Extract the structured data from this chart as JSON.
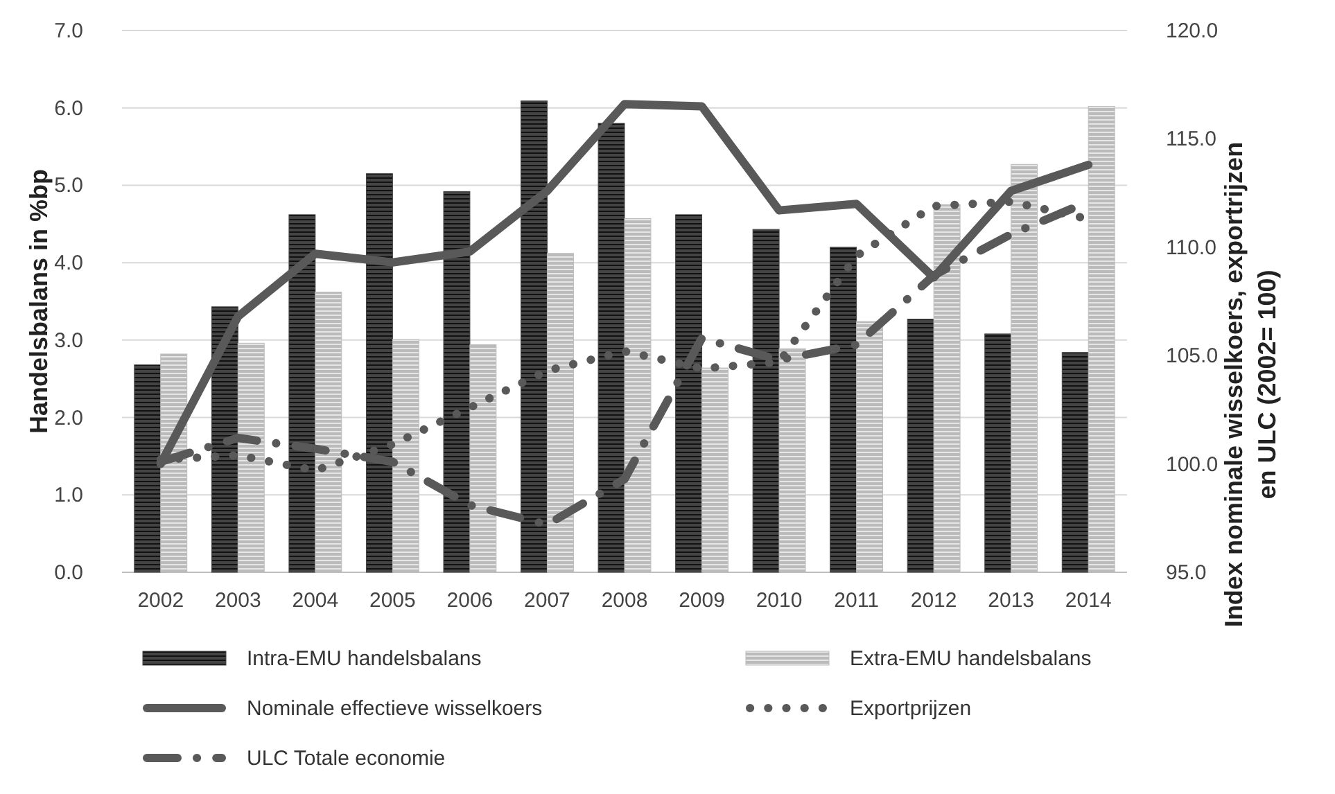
{
  "chart_data": {
    "type": "bar",
    "ylabel": "Handelsbalans in %bp",
    "y2label": "Index nominale wisselkoers, exportrijzen en ULC (2002= 100)",
    "categories": [
      "2002",
      "2003",
      "2004",
      "2005",
      "2006",
      "2007",
      "2008",
      "2009",
      "2010",
      "2011",
      "2012",
      "2013",
      "2014"
    ],
    "series": [
      {
        "name": "Intra-EMU handelsbalans",
        "color": "#444444",
        "values": [
          2.68,
          3.43,
          4.62,
          5.15,
          4.92,
          6.09,
          5.8,
          4.62,
          4.43,
          4.2,
          3.27,
          3.08,
          2.84
        ]
      },
      {
        "name": "Extra-EMU handelsbalans",
        "color": "#bbbbbb",
        "values": [
          2.82,
          2.96,
          3.62,
          3.01,
          2.94,
          4.12,
          4.57,
          2.64,
          2.89,
          3.24,
          4.75,
          5.27,
          6.02
        ]
      },
      {
        "name": "Nominale effectieve wisselkoers",
        "type": "line",
        "axis": "y2",
        "line_style": "solid",
        "color": "#595959",
        "values": [
          100.0,
          106.8,
          109.7,
          109.3,
          109.8,
          112.6,
          116.6,
          116.5,
          111.7,
          112.0,
          108.6,
          112.6,
          113.8
        ]
      },
      {
        "name": "Exportprijzen",
        "type": "line",
        "axis": "y2",
        "line_style": "dotted",
        "color": "#595959",
        "values": [
          100.2,
          100.4,
          99.7,
          100.9,
          102.6,
          104.3,
          105.2,
          104.4,
          104.7,
          109.6,
          111.9,
          112.1,
          111.3
        ]
      },
      {
        "name": "ULC Totale economie",
        "type": "line",
        "axis": "y2",
        "line_style": "dashed",
        "color": "#595959",
        "values": [
          100.1,
          101.2,
          100.7,
          100.1,
          98.1,
          97.2,
          99.3,
          105.8,
          104.8,
          105.5,
          108.7,
          110.6,
          112.1
        ]
      }
    ],
    "ylim": [
      0,
      7
    ],
    "yticks": [
      {
        "value": 0,
        "label": "0.0"
      },
      {
        "value": 1,
        "label": "1.0"
      },
      {
        "value": 2,
        "label": "2.0"
      },
      {
        "value": 3,
        "label": "3.0"
      },
      {
        "value": 4,
        "label": "4.0"
      },
      {
        "value": 5,
        "label": "5.0"
      },
      {
        "value": 6,
        "label": "6.0"
      },
      {
        "value": 7,
        "label": "7.0"
      }
    ],
    "y2lim": [
      95,
      120
    ],
    "y2ticks": [
      {
        "value": 95,
        "label": "95.0"
      },
      {
        "value": 100,
        "label": "100.0"
      },
      {
        "value": 105,
        "label": "105.0"
      },
      {
        "value": 110,
        "label": "110.0"
      },
      {
        "value": 115,
        "label": "115.0"
      },
      {
        "value": 120,
        "label": "120.0"
      }
    ],
    "grid": "y",
    "legend": "bottom"
  }
}
